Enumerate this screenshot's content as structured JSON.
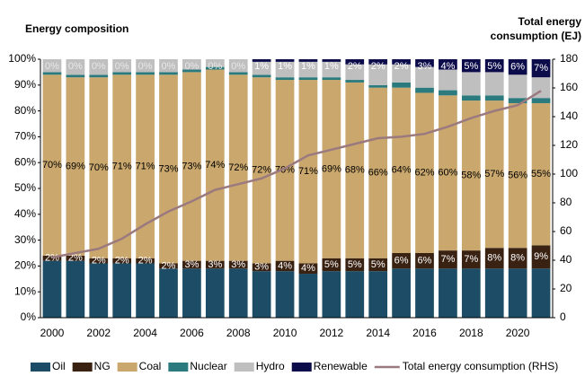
{
  "chart_data": {
    "type": "bar",
    "stacked": true,
    "title": "Energy composition",
    "y2_label": "Total energy consumption (EJ)",
    "categories": [
      "2000",
      null,
      "2002",
      null,
      "2004",
      null,
      "2006",
      null,
      "2008",
      null,
      "2010",
      null,
      "2012",
      null,
      "2014",
      null,
      "2016",
      null,
      "2018",
      null,
      "2020",
      null
    ],
    "ylim": [
      0,
      100
    ],
    "yticks": [
      {
        "value": 0,
        "label": "0%"
      },
      {
        "value": 10,
        "label": "10%"
      },
      {
        "value": 20,
        "label": "20%"
      },
      {
        "value": 30,
        "label": "30%"
      },
      {
        "value": 40,
        "label": "40%"
      },
      {
        "value": 50,
        "label": "50%"
      },
      {
        "value": 60,
        "label": "60%"
      },
      {
        "value": 70,
        "label": "70%"
      },
      {
        "value": 80,
        "label": "80%"
      },
      {
        "value": 90,
        "label": "90%"
      },
      {
        "value": 100,
        "label": "100%"
      }
    ],
    "y2lim": [
      0,
      180
    ],
    "y2ticks": [
      0,
      20,
      40,
      60,
      80,
      100,
      120,
      140,
      160,
      180
    ],
    "series": [
      {
        "name": "Oil",
        "color": "#1d4d66",
        "values": [
          22,
          22,
          21,
          21,
          21,
          19,
          19,
          19,
          19,
          18,
          18,
          17,
          18,
          18,
          18,
          19,
          19,
          19,
          19,
          19,
          19,
          19
        ]
      },
      {
        "name": "NG",
        "color": "#3a2213",
        "values": [
          2,
          2,
          2,
          2,
          2,
          2,
          3,
          3,
          3,
          3,
          4,
          4,
          5,
          5,
          5,
          6,
          6,
          7,
          7,
          8,
          8,
          9
        ],
        "value_labels": [
          "2%",
          "2%",
          "2%",
          "2%",
          "2%",
          "2%",
          "3%",
          "3%",
          "3%",
          "3%",
          "4%",
          "4%",
          "5%",
          "5%",
          "5%",
          "6%",
          "6%",
          "7%",
          "7%",
          "8%",
          "8%",
          "9%"
        ]
      },
      {
        "name": "Coal",
        "color": "#c9a76d",
        "values": [
          70,
          69,
          70,
          71,
          71,
          73,
          73,
          74,
          72,
          72,
          70,
          71,
          69,
          68,
          66,
          64,
          62,
          60,
          58,
          57,
          56,
          55
        ],
        "value_labels": [
          "70%",
          "69%",
          "70%",
          "71%",
          "71%",
          "73%",
          "73%",
          "74%",
          "72%",
          "72%",
          "70%",
          "71%",
          "69%",
          "68%",
          "66%",
          "64%",
          "62%",
          "60%",
          "58%",
          "57%",
          "56%",
          "55%"
        ]
      },
      {
        "name": "Nuclear",
        "color": "#2b7a7d",
        "values": [
          1,
          1,
          1,
          1,
          1,
          1,
          1,
          1,
          1,
          1,
          1,
          1,
          1,
          1,
          1,
          2,
          2,
          2,
          2,
          2,
          2,
          2
        ]
      },
      {
        "name": "Hydro",
        "color": "#bfbfbf",
        "values": [
          5,
          6,
          6,
          5,
          5,
          5,
          4,
          3,
          5,
          5,
          6,
          6,
          6,
          6,
          8,
          7,
          8,
          8,
          9,
          9,
          9,
          8
        ]
      },
      {
        "name": "Renewable",
        "color": "#0c0c4b",
        "values": [
          0,
          0,
          0,
          0,
          0,
          0,
          0,
          0,
          0,
          1,
          1,
          1,
          1,
          2,
          2,
          2,
          3,
          4,
          5,
          5,
          6,
          7
        ],
        "value_labels": [
          "0%",
          "0%",
          "0%",
          "0%",
          "0%",
          "0%",
          "0%",
          "0%",
          "0%",
          "1%",
          "1%",
          "1%",
          "1%",
          "2%",
          "2%",
          "2%",
          "3%",
          "4%",
          "5%",
          "5%",
          "6%",
          "7%"
        ]
      },
      {
        "name": "Total energy consumption (RHS)",
        "type": "line",
        "axis": "y2",
        "color": "#9b7a7f",
        "values": [
          42,
          45,
          48,
          55,
          65,
          74,
          81,
          89,
          93,
          97,
          104,
          113,
          117,
          121,
          125,
          126,
          128,
          133,
          139,
          144,
          148,
          158
        ]
      }
    ]
  }
}
